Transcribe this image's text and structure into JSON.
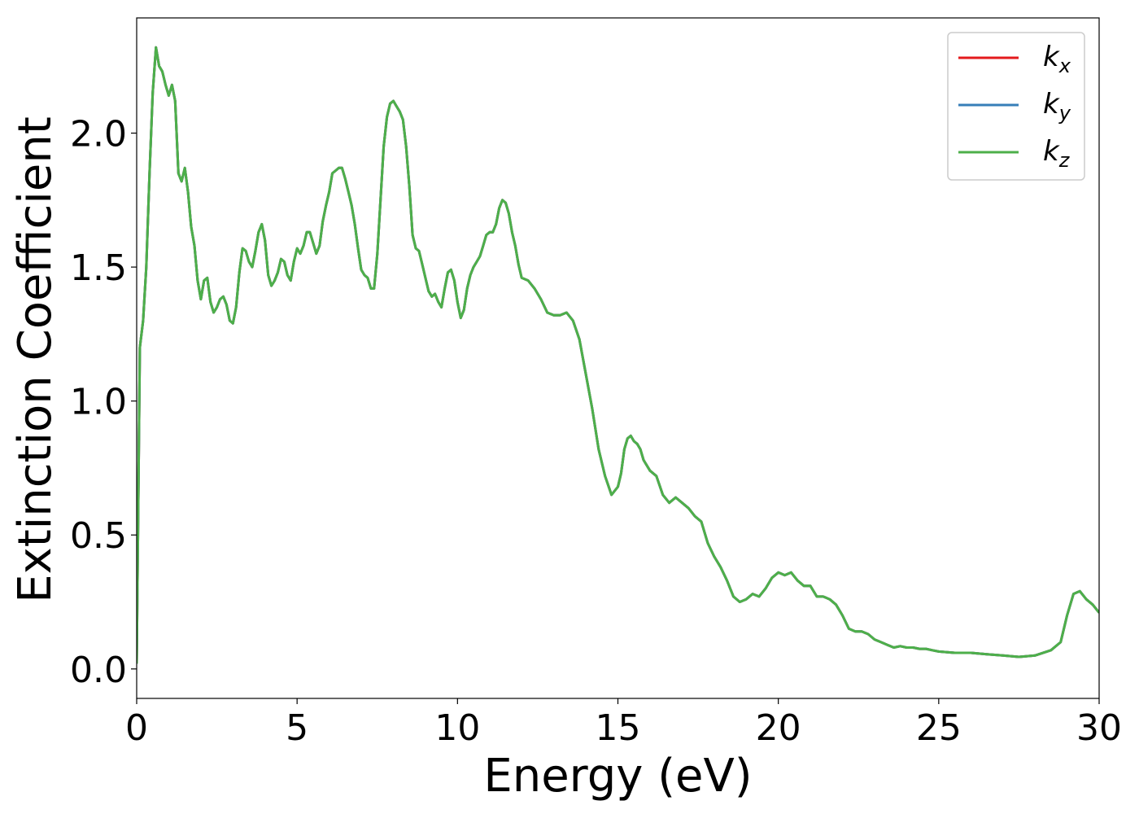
{
  "chart_data": {
    "type": "line",
    "xlabel": "Energy (eV)",
    "ylabel": "Extinction Coefficient",
    "xlim": [
      0,
      30
    ],
    "ylim": [
      -0.11,
      2.43
    ],
    "xticks": [
      0,
      5,
      10,
      15,
      20,
      25,
      30
    ],
    "xtick_labels": [
      "0",
      "5",
      "10",
      "15",
      "20",
      "25",
      "30"
    ],
    "yticks": [
      0.0,
      0.5,
      1.0,
      1.5,
      2.0
    ],
    "ytick_labels": [
      "0.0",
      "0.5",
      "1.0",
      "1.5",
      "2.0"
    ],
    "grid": false,
    "legend_position": "top-right",
    "x": [
      0,
      0.1,
      0.2,
      0.3,
      0.4,
      0.5,
      0.6,
      0.7,
      0.8,
      0.9,
      1.0,
      1.1,
      1.2,
      1.3,
      1.4,
      1.5,
      1.6,
      1.7,
      1.8,
      1.9,
      2.0,
      2.1,
      2.2,
      2.3,
      2.4,
      2.5,
      2.6,
      2.7,
      2.8,
      2.9,
      3.0,
      3.1,
      3.2,
      3.3,
      3.4,
      3.5,
      3.6,
      3.7,
      3.8,
      3.9,
      4.0,
      4.1,
      4.2,
      4.3,
      4.4,
      4.5,
      4.6,
      4.7,
      4.8,
      4.9,
      5.0,
      5.1,
      5.2,
      5.3,
      5.4,
      5.5,
      5.6,
      5.7,
      5.8,
      5.9,
      6.0,
      6.1,
      6.2,
      6.3,
      6.4,
      6.5,
      6.6,
      6.7,
      6.8,
      6.9,
      7.0,
      7.1,
      7.2,
      7.3,
      7.4,
      7.5,
      7.6,
      7.7,
      7.8,
      7.9,
      8.0,
      8.1,
      8.2,
      8.3,
      8.4,
      8.5,
      8.6,
      8.7,
      8.8,
      8.9,
      9.0,
      9.1,
      9.2,
      9.3,
      9.4,
      9.5,
      9.6,
      9.7,
      9.8,
      9.9,
      10.0,
      10.1,
      10.2,
      10.3,
      10.4,
      10.5,
      10.6,
      10.7,
      10.8,
      10.9,
      11.0,
      11.1,
      11.2,
      11.3,
      11.4,
      11.5,
      11.6,
      11.7,
      11.8,
      11.9,
      12.0,
      12.2,
      12.4,
      12.6,
      12.8,
      13.0,
      13.2,
      13.4,
      13.6,
      13.8,
      14.0,
      14.2,
      14.4,
      14.6,
      14.8,
      15.0,
      15.1,
      15.2,
      15.3,
      15.4,
      15.5,
      15.6,
      15.7,
      15.8,
      16.0,
      16.2,
      16.4,
      16.6,
      16.8,
      17.0,
      17.2,
      17.4,
      17.6,
      17.8,
      18.0,
      18.2,
      18.4,
      18.6,
      18.8,
      19.0,
      19.2,
      19.4,
      19.6,
      19.8,
      20.0,
      20.2,
      20.4,
      20.6,
      20.8,
      21.0,
      21.2,
      21.4,
      21.6,
      21.8,
      22.0,
      22.2,
      22.4,
      22.6,
      22.8,
      23.0,
      23.2,
      23.4,
      23.6,
      23.8,
      24.0,
      24.2,
      24.4,
      24.6,
      24.8,
      25.0,
      25.5,
      26.0,
      26.5,
      27.0,
      27.5,
      28.0,
      28.5,
      28.8,
      29.0,
      29.2,
      29.4,
      29.6,
      29.8,
      30.0
    ],
    "series": [
      {
        "name": "k_x",
        "color": "#e41a1c",
        "y": [
          0.02,
          1.2,
          1.3,
          1.5,
          1.85,
          2.15,
          2.32,
          2.25,
          2.23,
          2.18,
          2.14,
          2.18,
          2.12,
          1.85,
          1.82,
          1.87,
          1.78,
          1.65,
          1.58,
          1.45,
          1.38,
          1.45,
          1.46,
          1.37,
          1.33,
          1.35,
          1.38,
          1.39,
          1.36,
          1.3,
          1.29,
          1.35,
          1.48,
          1.57,
          1.56,
          1.52,
          1.5,
          1.56,
          1.63,
          1.66,
          1.6,
          1.47,
          1.43,
          1.45,
          1.48,
          1.53,
          1.52,
          1.47,
          1.45,
          1.52,
          1.57,
          1.55,
          1.58,
          1.63,
          1.63,
          1.59,
          1.55,
          1.58,
          1.67,
          1.73,
          1.78,
          1.85,
          1.86,
          1.87,
          1.87,
          1.83,
          1.78,
          1.73,
          1.66,
          1.57,
          1.49,
          1.47,
          1.46,
          1.42,
          1.42,
          1.55,
          1.75,
          1.95,
          2.06,
          2.11,
          2.12,
          2.1,
          2.08,
          2.05,
          1.95,
          1.8,
          1.62,
          1.57,
          1.56,
          1.51,
          1.46,
          1.41,
          1.39,
          1.4,
          1.37,
          1.35,
          1.42,
          1.48,
          1.49,
          1.45,
          1.37,
          1.31,
          1.34,
          1.42,
          1.47,
          1.5,
          1.52,
          1.54,
          1.58,
          1.62,
          1.63,
          1.63,
          1.66,
          1.72,
          1.75,
          1.74,
          1.7,
          1.63,
          1.58,
          1.51,
          1.46,
          1.45,
          1.42,
          1.38,
          1.33,
          1.32,
          1.32,
          1.33,
          1.3,
          1.23,
          1.1,
          0.97,
          0.82,
          0.72,
          0.65,
          0.68,
          0.73,
          0.82,
          0.86,
          0.87,
          0.85,
          0.84,
          0.82,
          0.78,
          0.74,
          0.72,
          0.65,
          0.62,
          0.64,
          0.62,
          0.6,
          0.57,
          0.55,
          0.47,
          0.42,
          0.38,
          0.33,
          0.27,
          0.25,
          0.26,
          0.28,
          0.27,
          0.3,
          0.34,
          0.36,
          0.35,
          0.36,
          0.33,
          0.31,
          0.31,
          0.27,
          0.27,
          0.26,
          0.24,
          0.2,
          0.15,
          0.14,
          0.14,
          0.13,
          0.11,
          0.1,
          0.09,
          0.08,
          0.085,
          0.08,
          0.08,
          0.075,
          0.075,
          0.07,
          0.065,
          0.06,
          0.06,
          0.055,
          0.05,
          0.045,
          0.05,
          0.07,
          0.1,
          0.2,
          0.28,
          0.29,
          0.26,
          0.24,
          0.21
        ]
      },
      {
        "name": "k_y",
        "color": "#377eb8",
        "y": [
          0.02,
          1.2,
          1.3,
          1.5,
          1.85,
          2.15,
          2.32,
          2.25,
          2.23,
          2.18,
          2.14,
          2.18,
          2.12,
          1.85,
          1.82,
          1.87,
          1.78,
          1.65,
          1.58,
          1.45,
          1.38,
          1.45,
          1.46,
          1.37,
          1.33,
          1.35,
          1.38,
          1.39,
          1.36,
          1.3,
          1.29,
          1.35,
          1.48,
          1.57,
          1.56,
          1.52,
          1.5,
          1.56,
          1.63,
          1.66,
          1.6,
          1.47,
          1.43,
          1.45,
          1.48,
          1.53,
          1.52,
          1.47,
          1.45,
          1.52,
          1.57,
          1.55,
          1.58,
          1.63,
          1.63,
          1.59,
          1.55,
          1.58,
          1.67,
          1.73,
          1.78,
          1.85,
          1.86,
          1.87,
          1.87,
          1.83,
          1.78,
          1.73,
          1.66,
          1.57,
          1.49,
          1.47,
          1.46,
          1.42,
          1.42,
          1.55,
          1.75,
          1.95,
          2.06,
          2.11,
          2.12,
          2.1,
          2.08,
          2.05,
          1.95,
          1.8,
          1.62,
          1.57,
          1.56,
          1.51,
          1.46,
          1.41,
          1.39,
          1.4,
          1.37,
          1.35,
          1.42,
          1.48,
          1.49,
          1.45,
          1.37,
          1.31,
          1.34,
          1.42,
          1.47,
          1.5,
          1.52,
          1.54,
          1.58,
          1.62,
          1.63,
          1.63,
          1.66,
          1.72,
          1.75,
          1.74,
          1.7,
          1.63,
          1.58,
          1.51,
          1.46,
          1.45,
          1.42,
          1.38,
          1.33,
          1.32,
          1.32,
          1.33,
          1.3,
          1.23,
          1.1,
          0.97,
          0.82,
          0.72,
          0.65,
          0.68,
          0.73,
          0.82,
          0.86,
          0.87,
          0.85,
          0.84,
          0.82,
          0.78,
          0.74,
          0.72,
          0.65,
          0.62,
          0.64,
          0.62,
          0.6,
          0.57,
          0.55,
          0.47,
          0.42,
          0.38,
          0.33,
          0.27,
          0.25,
          0.26,
          0.28,
          0.27,
          0.3,
          0.34,
          0.36,
          0.35,
          0.36,
          0.33,
          0.31,
          0.31,
          0.27,
          0.27,
          0.26,
          0.24,
          0.2,
          0.15,
          0.14,
          0.14,
          0.13,
          0.11,
          0.1,
          0.09,
          0.08,
          0.085,
          0.08,
          0.08,
          0.075,
          0.075,
          0.07,
          0.065,
          0.06,
          0.06,
          0.055,
          0.05,
          0.045,
          0.05,
          0.07,
          0.1,
          0.2,
          0.28,
          0.29,
          0.26,
          0.24,
          0.21
        ]
      },
      {
        "name": "k_z",
        "color": "#4daf4a",
        "y": [
          0.02,
          1.2,
          1.3,
          1.5,
          1.85,
          2.15,
          2.32,
          2.25,
          2.23,
          2.18,
          2.14,
          2.18,
          2.12,
          1.85,
          1.82,
          1.87,
          1.78,
          1.65,
          1.58,
          1.45,
          1.38,
          1.45,
          1.46,
          1.37,
          1.33,
          1.35,
          1.38,
          1.39,
          1.36,
          1.3,
          1.29,
          1.35,
          1.48,
          1.57,
          1.56,
          1.52,
          1.5,
          1.56,
          1.63,
          1.66,
          1.6,
          1.47,
          1.43,
          1.45,
          1.48,
          1.53,
          1.52,
          1.47,
          1.45,
          1.52,
          1.57,
          1.55,
          1.58,
          1.63,
          1.63,
          1.59,
          1.55,
          1.58,
          1.67,
          1.73,
          1.78,
          1.85,
          1.86,
          1.87,
          1.87,
          1.83,
          1.78,
          1.73,
          1.66,
          1.57,
          1.49,
          1.47,
          1.46,
          1.42,
          1.42,
          1.55,
          1.75,
          1.95,
          2.06,
          2.11,
          2.12,
          2.1,
          2.08,
          2.05,
          1.95,
          1.8,
          1.62,
          1.57,
          1.56,
          1.51,
          1.46,
          1.41,
          1.39,
          1.4,
          1.37,
          1.35,
          1.42,
          1.48,
          1.49,
          1.45,
          1.37,
          1.31,
          1.34,
          1.42,
          1.47,
          1.5,
          1.52,
          1.54,
          1.58,
          1.62,
          1.63,
          1.63,
          1.66,
          1.72,
          1.75,
          1.74,
          1.7,
          1.63,
          1.58,
          1.51,
          1.46,
          1.45,
          1.42,
          1.38,
          1.33,
          1.32,
          1.32,
          1.33,
          1.3,
          1.23,
          1.1,
          0.97,
          0.82,
          0.72,
          0.65,
          0.68,
          0.73,
          0.82,
          0.86,
          0.87,
          0.85,
          0.84,
          0.82,
          0.78,
          0.74,
          0.72,
          0.65,
          0.62,
          0.64,
          0.62,
          0.6,
          0.57,
          0.55,
          0.47,
          0.42,
          0.38,
          0.33,
          0.27,
          0.25,
          0.26,
          0.28,
          0.27,
          0.3,
          0.34,
          0.36,
          0.35,
          0.36,
          0.33,
          0.31,
          0.31,
          0.27,
          0.27,
          0.26,
          0.24,
          0.2,
          0.15,
          0.14,
          0.14,
          0.13,
          0.11,
          0.1,
          0.09,
          0.08,
          0.085,
          0.08,
          0.08,
          0.075,
          0.075,
          0.07,
          0.065,
          0.06,
          0.06,
          0.055,
          0.05,
          0.045,
          0.05,
          0.07,
          0.1,
          0.2,
          0.28,
          0.29,
          0.26,
          0.24,
          0.21
        ]
      }
    ],
    "legend": [
      {
        "base": "k",
        "sub": "x",
        "color": "#e41a1c"
      },
      {
        "base": "k",
        "sub": "y",
        "color": "#377eb8"
      },
      {
        "base": "k",
        "sub": "z",
        "color": "#4daf4a"
      }
    ]
  }
}
